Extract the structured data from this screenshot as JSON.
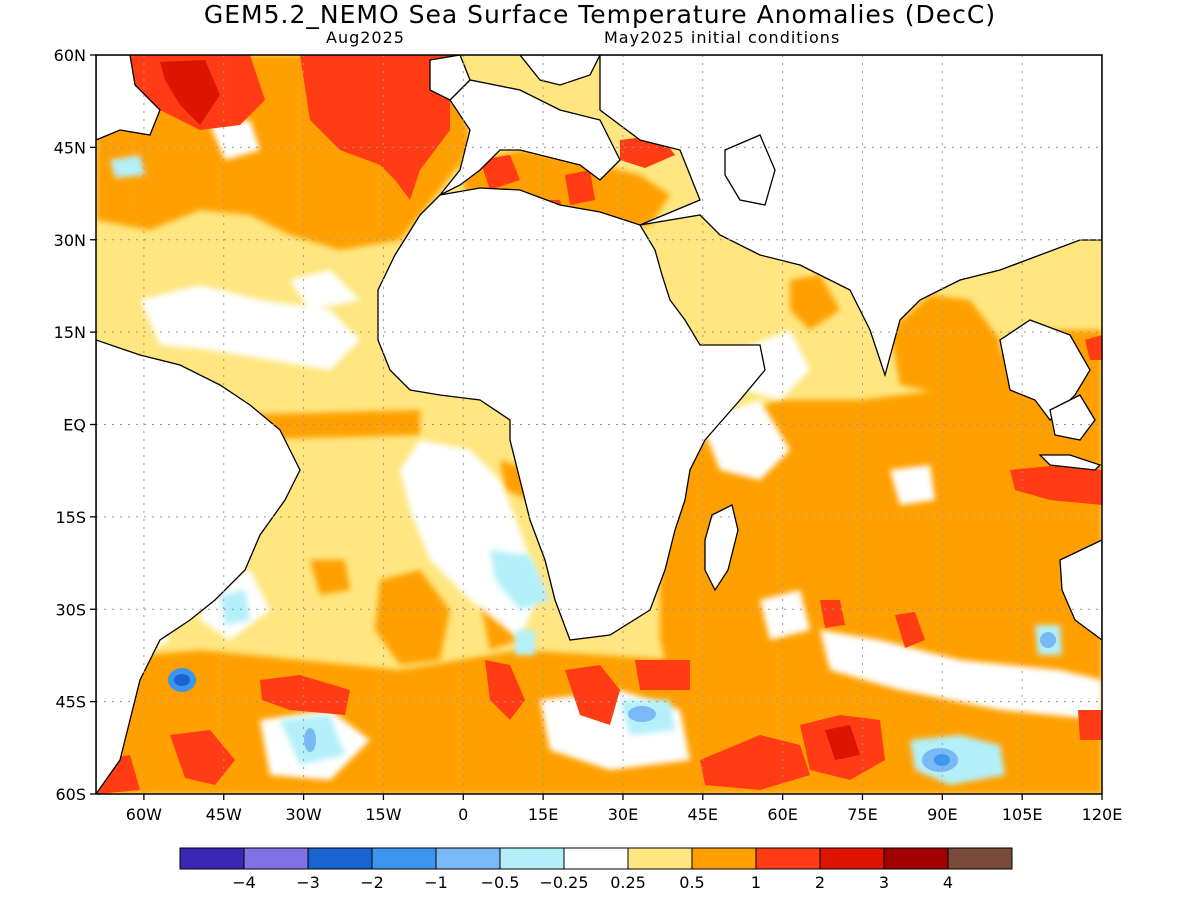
{
  "title": "GEM5.2_NEMO Sea Surface Temperature Anomalies (DecC)",
  "subtitle_left": "Aug2025",
  "subtitle_right": "May2025 initial conditions",
  "lat_labels": [
    "60N",
    "45N",
    "30N",
    "15N",
    "EQ",
    "15S",
    "30S",
    "45S",
    "60S"
  ],
  "lat_values": [
    60,
    45,
    30,
    15,
    0,
    -15,
    -30,
    -45,
    -60
  ],
  "lon_labels": [
    "60W",
    "45W",
    "30W",
    "15W",
    "0",
    "15E",
    "30E",
    "45E",
    "60E",
    "75E",
    "90E",
    "105E",
    "120E"
  ],
  "lon_values": [
    -60,
    -45,
    -30,
    -15,
    0,
    15,
    30,
    45,
    60,
    75,
    90,
    105,
    120
  ],
  "map_extent": {
    "lon_min": -69,
    "lon_max": 120,
    "lat_min": -60,
    "lat_max": 60
  },
  "colorbar": {
    "colors": [
      "#3a28b4",
      "#8270e6",
      "#1a64d2",
      "#3c96f0",
      "#78b9f6",
      "#b4f0fa",
      "#ffffff",
      "#ffe680",
      "#ffa000",
      "#ff3c14",
      "#dc1400",
      "#a00000",
      "#7a4a3a"
    ],
    "labels": [
      "-4",
      "-3",
      "-2",
      "-1",
      "-0.5",
      "-0.25",
      "0.25",
      "0.5",
      "1",
      "2",
      "3",
      "4"
    ]
  },
  "palette": {
    "weak_warm": "#ffe680",
    "warm": "#ffa000",
    "strong_warm": "#ff3c14",
    "very_strong": "#dc1400",
    "cold_light": "#b4f0fa",
    "cold_mid": "#78b9f6",
    "cold_strong": "#3c96f0",
    "cold_deep": "#1a64d2"
  }
}
